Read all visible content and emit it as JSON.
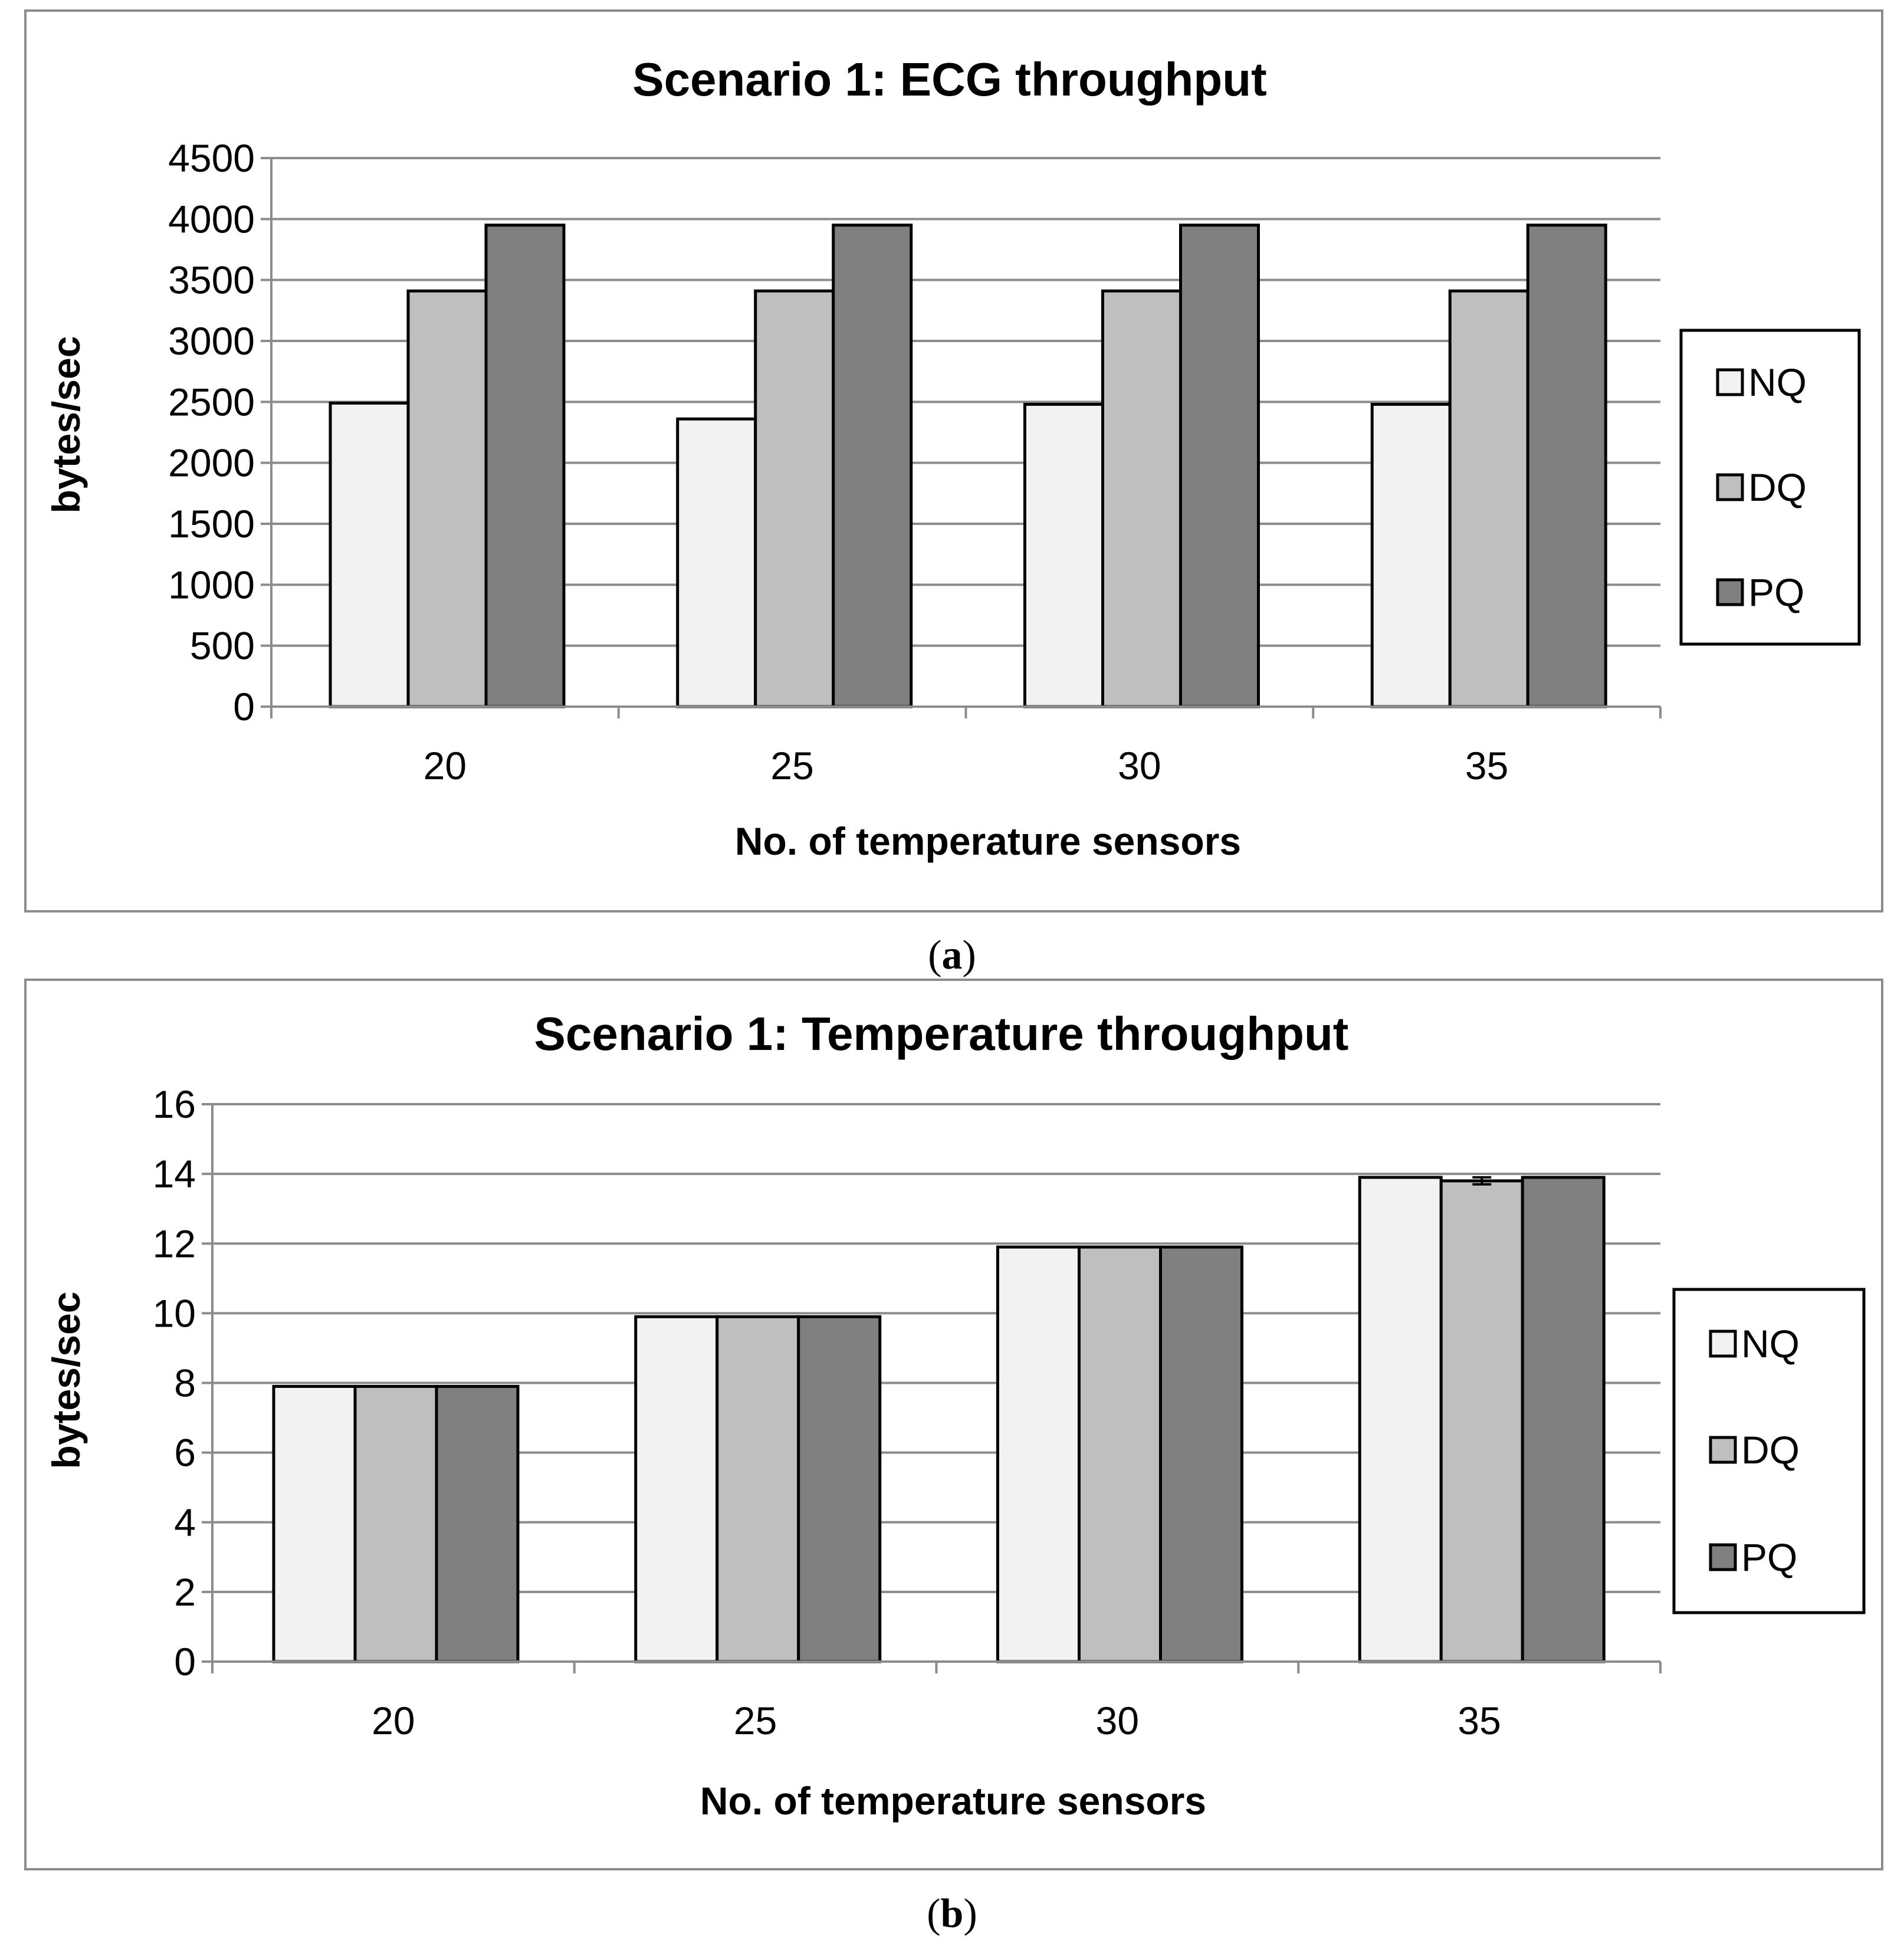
{
  "chart_data": [
    {
      "type": "bar",
      "title": "Scenario 1:  ECG throughput",
      "xlabel": "No. of temperature sensors",
      "ylabel": "bytes/sec",
      "caption_letter": "a",
      "categories": [
        "20",
        "25",
        "30",
        "35"
      ],
      "ylim": [
        0,
        4500
      ],
      "yticks": [
        "0",
        "500",
        "1000",
        "1500",
        "2000",
        "2500",
        "3000",
        "3500",
        "4000",
        "4500"
      ],
      "grid": true,
      "legend_position": "right",
      "series": [
        {
          "name": "NQ",
          "color": "#f2f2f2",
          "values": [
            2490,
            2360,
            2480,
            2480
          ]
        },
        {
          "name": "DQ",
          "color": "#bfbfbf",
          "values": [
            3410,
            3410,
            3410,
            3410
          ]
        },
        {
          "name": "PQ",
          "color": "#808080",
          "values": [
            3950,
            3950,
            3950,
            3950
          ]
        }
      ]
    },
    {
      "type": "bar",
      "title": "Scenario 1:  Temperature throughput",
      "xlabel": "No. of temperature sensors",
      "ylabel": "bytes/sec",
      "caption_letter": "b",
      "categories": [
        "20",
        "25",
        "30",
        "35"
      ],
      "ylim": [
        0,
        16
      ],
      "yticks": [
        "0",
        "2",
        "4",
        "6",
        "8",
        "10",
        "12",
        "14",
        "16"
      ],
      "grid": true,
      "legend_position": "right",
      "series": [
        {
          "name": "NQ",
          "color": "#f2f2f2",
          "values": [
            7.9,
            9.9,
            11.9,
            13.9
          ]
        },
        {
          "name": "DQ",
          "color": "#bfbfbf",
          "values": [
            7.9,
            9.9,
            11.9,
            13.8
          ]
        },
        {
          "name": "PQ",
          "color": "#808080",
          "values": [
            7.9,
            9.9,
            11.9,
            13.9
          ]
        }
      ],
      "error_bars": [
        {
          "series": "DQ",
          "category": "35",
          "low": 13.7,
          "high": 13.9
        }
      ]
    }
  ]
}
